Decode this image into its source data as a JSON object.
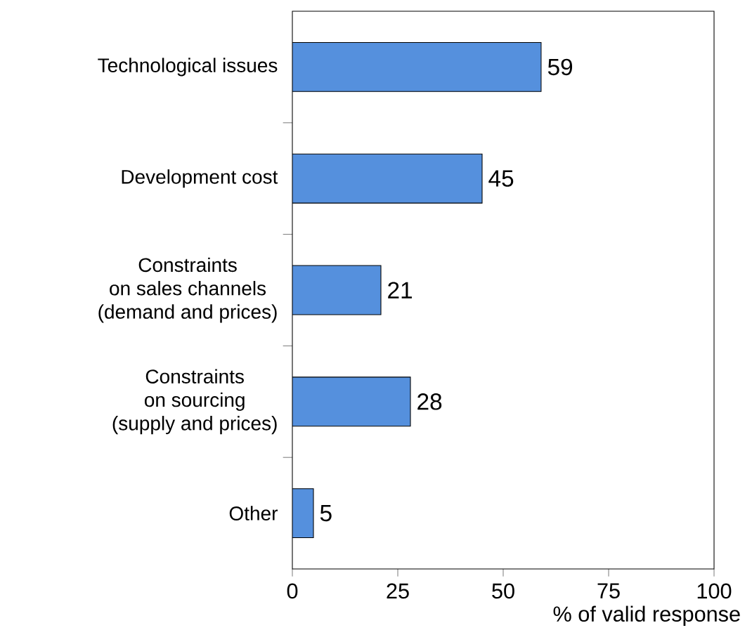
{
  "chart_data": {
    "type": "bar",
    "orientation": "horizontal",
    "categories": [
      "Technological issues",
      "Development cost",
      "Constraints\non sales channels\n(demand and prices)",
      "Constraints\non sourcing\n(supply and prices)",
      "Other"
    ],
    "values": [
      59,
      45,
      21,
      28,
      5
    ],
    "color": "#5590dd",
    "xlabel": "% of valid response",
    "xlim": [
      0,
      100
    ],
    "xticks": [
      0,
      25,
      50,
      75,
      100
    ],
    "data_labels": true,
    "grid": false
  }
}
